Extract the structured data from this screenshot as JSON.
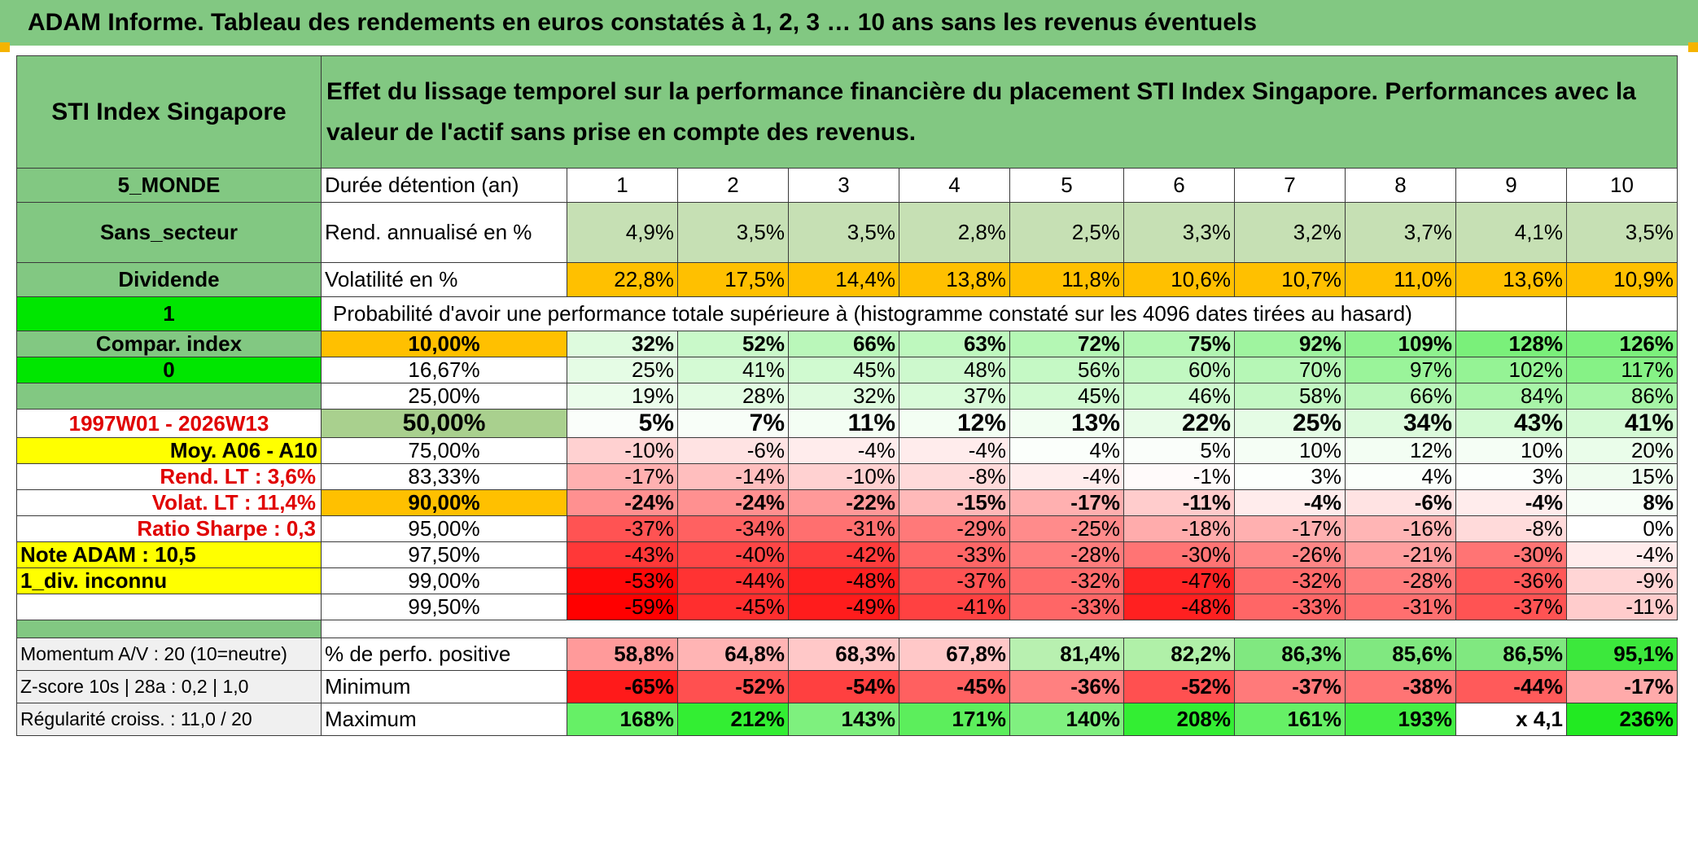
{
  "title": "ADAM Informe. Tableau des rendements en euros constatés à 1, 2, 3 … 10 ans sans les revenus éventuels",
  "header": {
    "left": "STI Index Singapore",
    "description": "Effet du lissage temporel sur la performance financière du placement STI Index Singapore. Performances avec la valeur de l'actif sans prise en compte des revenus."
  },
  "side_labels": {
    "s1": "5_MONDE",
    "s2": "Sans_secteur",
    "s3": "Dividende",
    "s4": "1",
    "s5": "Compar. index",
    "s6": "0",
    "s7": "",
    "s8": "1997W01 - 2026W13",
    "s9": "Moy. A06 - A10",
    "s10": "Rend. LT :   3,6%",
    "s11": "Volat. LT :   11,4%",
    "s12": "Ratio Sharpe :    0,3",
    "s13": "Note ADAM : 10,5",
    "s14": "1_div. inconnu",
    "s15": ""
  },
  "row_labels": {
    "duration": "Durée détention (an)",
    "rend": "Rend. annualisé en %",
    "vol": "Volatilité en %",
    "prob": "Probabilité d'avoir une performance totale supérieure à (histogramme constaté sur les 4096 dates tirées au hasard)"
  },
  "years": [
    "1",
    "2",
    "3",
    "4",
    "5",
    "6",
    "7",
    "8",
    "9",
    "10"
  ],
  "rend_values": [
    "4,9%",
    "3,5%",
    "3,5%",
    "2,8%",
    "2,5%",
    "3,3%",
    "3,2%",
    "3,7%",
    "4,1%",
    "3,5%"
  ],
  "vol_values": [
    "22,8%",
    "17,5%",
    "14,4%",
    "13,8%",
    "11,8%",
    "10,6%",
    "10,7%",
    "11,0%",
    "13,6%",
    "10,9%"
  ],
  "percentiles": [
    {
      "label": "10,00%",
      "values": [
        "32%",
        "52%",
        "66%",
        "63%",
        "72%",
        "75%",
        "92%",
        "109%",
        "128%",
        "126%"
      ]
    },
    {
      "label": "16,67%",
      "values": [
        "25%",
        "41%",
        "45%",
        "48%",
        "56%",
        "60%",
        "70%",
        "97%",
        "102%",
        "117%"
      ]
    },
    {
      "label": "25,00%",
      "values": [
        "19%",
        "28%",
        "32%",
        "37%",
        "45%",
        "46%",
        "58%",
        "66%",
        "84%",
        "86%"
      ]
    },
    {
      "label": "50,00%",
      "values": [
        "5%",
        "7%",
        "11%",
        "12%",
        "13%",
        "22%",
        "25%",
        "34%",
        "43%",
        "41%"
      ]
    },
    {
      "label": "75,00%",
      "values": [
        "-10%",
        "-6%",
        "-4%",
        "-4%",
        "4%",
        "5%",
        "10%",
        "12%",
        "10%",
        "20%"
      ]
    },
    {
      "label": "83,33%",
      "values": [
        "-17%",
        "-14%",
        "-10%",
        "-8%",
        "-4%",
        "-1%",
        "3%",
        "4%",
        "3%",
        "15%"
      ]
    },
    {
      "label": "90,00%",
      "values": [
        "-24%",
        "-24%",
        "-22%",
        "-15%",
        "-17%",
        "-11%",
        "-4%",
        "-6%",
        "-4%",
        "8%"
      ]
    },
    {
      "label": "95,00%",
      "values": [
        "-37%",
        "-34%",
        "-31%",
        "-29%",
        "-25%",
        "-18%",
        "-17%",
        "-16%",
        "-8%",
        "0%"
      ]
    },
    {
      "label": "97,50%",
      "values": [
        "-43%",
        "-40%",
        "-42%",
        "-33%",
        "-28%",
        "-30%",
        "-26%",
        "-21%",
        "-30%",
        "-4%"
      ]
    },
    {
      "label": "99,00%",
      "values": [
        "-53%",
        "-44%",
        "-48%",
        "-37%",
        "-32%",
        "-47%",
        "-32%",
        "-28%",
        "-36%",
        "-9%"
      ]
    },
    {
      "label": "99,50%",
      "values": [
        "-59%",
        "-45%",
        "-49%",
        "-41%",
        "-33%",
        "-48%",
        "-33%",
        "-31%",
        "-37%",
        "-11%"
      ]
    }
  ],
  "bottom": [
    {
      "side": "Momentum A/V : 20 (10=neutre)",
      "label": "% de perfo. positive",
      "values": [
        "58,8%",
        "64,8%",
        "68,3%",
        "67,8%",
        "81,4%",
        "82,2%",
        "86,3%",
        "85,6%",
        "86,5%",
        "95,1%"
      ]
    },
    {
      "side": "Z-score 10s | 28a : 0,2 | 1,0",
      "label": "Minimum",
      "values": [
        "-65%",
        "-52%",
        "-54%",
        "-45%",
        "-36%",
        "-52%",
        "-37%",
        "-38%",
        "-44%",
        "-17%"
      ]
    },
    {
      "side": "Régularité croiss. : 11,0 / 20",
      "label": "Maximum",
      "values": [
        "168%",
        "212%",
        "143%",
        "171%",
        "140%",
        "208%",
        "161%",
        "193%",
        "x 4,1",
        "236%"
      ]
    }
  ],
  "colors": {
    "header_green": "#82c882",
    "light_green": "#c6e0b4",
    "orange": "#ffc000",
    "yellow": "#ffff00",
    "bright_green": "#00e600",
    "label_red": "#e00000"
  }
}
